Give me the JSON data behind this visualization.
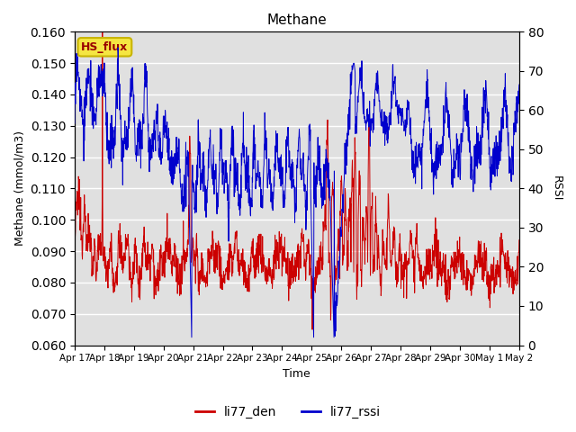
{
  "title": "Methane",
  "xlabel": "Time",
  "ylabel_left": "Methane (mmol/m3)",
  "ylabel_right": "RSSI",
  "ylim_left": [
    0.06,
    0.16
  ],
  "ylim_right": [
    0,
    80
  ],
  "yticks_left": [
    0.06,
    0.07,
    0.08,
    0.09,
    0.1,
    0.11,
    0.12,
    0.13,
    0.14,
    0.15,
    0.16
  ],
  "yticks_right": [
    0,
    10,
    20,
    30,
    40,
    50,
    60,
    70,
    80
  ],
  "xtick_labels": [
    "Apr 17",
    "Apr 18",
    "Apr 19",
    "Apr 20",
    "Apr 21",
    "Apr 22",
    "Apr 23",
    "Apr 24",
    "Apr 25",
    "Apr 26",
    "Apr 27",
    "Apr 28",
    "Apr 29",
    "Apr 30",
    "May 1",
    "May 2"
  ],
  "annotation_text": "HS_flux",
  "annotation_facecolor": "#f5e642",
  "annotation_edgecolor": "#c8b400",
  "annotation_textcolor": "#990000",
  "line_red_color": "#cc0000",
  "line_blue_color": "#0000cc",
  "legend_labels": [
    "li77_den",
    "li77_rssi"
  ],
  "bg_color": "#e0e0e0",
  "figsize": [
    6.4,
    4.8
  ],
  "dpi": 100
}
